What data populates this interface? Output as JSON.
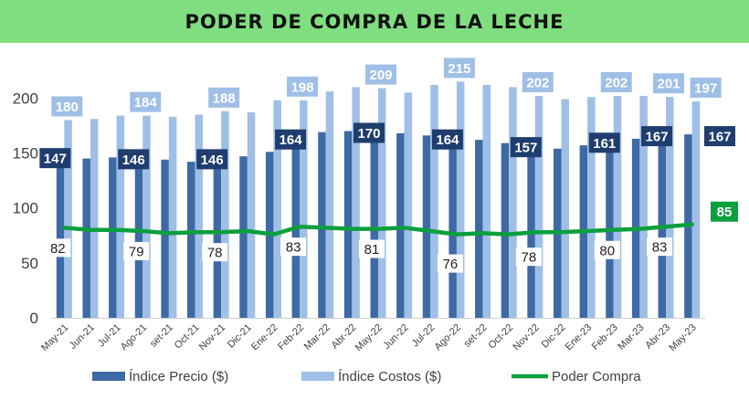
{
  "title": "PODER DE COMPRA DE LA LECHE",
  "colors": {
    "precio": "#3d6aa5",
    "costos": "#9fbfe6",
    "poder": "#0c9f3e",
    "precio_label_bg": "#1f3d6e",
    "costos_label_bg": "#9fbfe6",
    "title_bg": "#7fde7f"
  },
  "chart_data": {
    "type": "bar",
    "title": "PODER DE COMPRA DE LA LECHE",
    "categories": [
      "May-21",
      "Jun-21",
      "Jul-21",
      "Ago-21",
      "set-21",
      "Oct-21",
      "Nov-21",
      "Dic-21",
      "Ene-22",
      "Feb-22",
      "Mar-22",
      "Abr-22",
      "May-22",
      "Jun-22",
      "Jul-22",
      "Ago-22",
      "set-22",
      "Oct-22",
      "Nov-22",
      "Dic-22",
      "Ene-23",
      "Feb-23",
      "Mar-23",
      "Abr-23",
      "May-23"
    ],
    "ylim": [
      0,
      230
    ],
    "yticks": [
      0,
      50,
      100,
      150,
      200
    ],
    "grid": false,
    "legend_position": "bottom",
    "series": [
      {
        "name": "Índice Precio ($)",
        "kind": "bar",
        "values": [
          147,
          145,
          146,
          146,
          144,
          142,
          146,
          147,
          151,
          164,
          169,
          170,
          170,
          168,
          166,
          164,
          162,
          159,
          157,
          154,
          157,
          161,
          163,
          167,
          167
        ],
        "labeled_indices": [
          0,
          3,
          6,
          9,
          12,
          15,
          18,
          21,
          23,
          24
        ]
      },
      {
        "name": "Índice Costos ($)",
        "kind": "bar",
        "values": [
          180,
          181,
          184,
          184,
          183,
          185,
          188,
          187,
          198,
          198,
          206,
          210,
          209,
          205,
          212,
          215,
          212,
          210,
          202,
          199,
          201,
          202,
          202,
          201,
          197
        ],
        "labeled_indices": [
          0,
          3,
          6,
          9,
          12,
          15,
          18,
          21,
          23,
          24
        ]
      },
      {
        "name": "Poder Compra",
        "kind": "line",
        "values": [
          82,
          80,
          80,
          79,
          77,
          78,
          78,
          79,
          76,
          83,
          82,
          81,
          81,
          82,
          79,
          76,
          77,
          76,
          78,
          78,
          79,
          80,
          81,
          83,
          85
        ],
        "labeled_indices": [
          0,
          3,
          6,
          9,
          12,
          15,
          18,
          21,
          23,
          24
        ]
      }
    ]
  }
}
